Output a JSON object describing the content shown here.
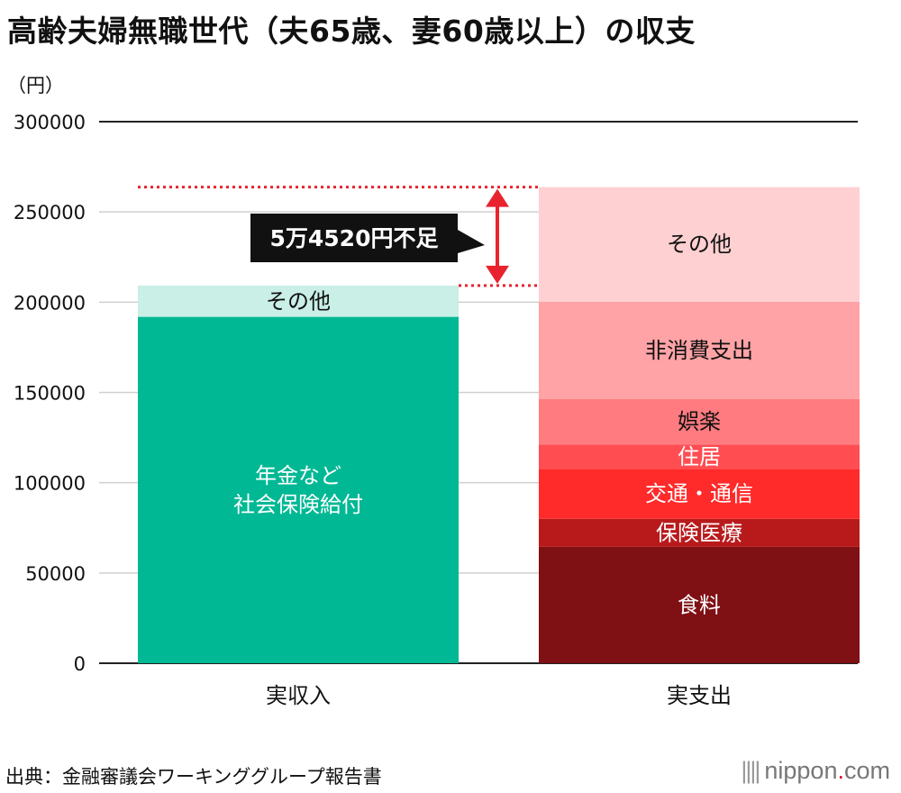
{
  "title": "高齢夫婦無職世代（夫65歳、妻60歳以上）の収支",
  "source": "出典：金融審議会ワーキンググループ報告書",
  "brand": {
    "name": "nippon",
    "dot": ".",
    "tld": "com",
    "bars": "||||"
  },
  "chart_data": {
    "type": "bar",
    "stacked": true,
    "unit_label": "（円）",
    "ylim": [
      0,
      300000
    ],
    "yticks": [
      "0",
      "50000",
      "100000",
      "150000",
      "200000",
      "250000",
      "300000"
    ],
    "grid": true,
    "categories": [
      "実収入",
      "実支出"
    ],
    "stacks": [
      {
        "category": "実収入",
        "segments": [
          {
            "label_lines": [
              "年金など",
              "社会保険給付"
            ],
            "value": 191880,
            "color": "#00b894",
            "text_color": "#ffffff"
          },
          {
            "label_lines": [
              "その他"
            ],
            "value": 17318,
            "color": "#c9efe6",
            "text_color": "#111111"
          }
        ]
      },
      {
        "category": "実支出",
        "segments": [
          {
            "label_lines": [
              "食料"
            ],
            "value": 64444,
            "color": "#7f1014",
            "text_color": "#ffffff"
          },
          {
            "label_lines": [
              "保険医療"
            ],
            "value": 15512,
            "color": "#b81a1c",
            "text_color": "#ffffff"
          },
          {
            "label_lines": [
              "交通・通信"
            ],
            "value": 27576,
            "color": "#ff2a2a",
            "text_color": "#ffffff"
          },
          {
            "label_lines": [
              "住居"
            ],
            "value": 13656,
            "color": "#ff4d52",
            "text_color": "#ffffff"
          },
          {
            "label_lines": [
              "娯楽"
            ],
            "value": 25077,
            "color": "#ff7b80",
            "text_color": "#111111"
          },
          {
            "label_lines": [
              "非消費支出"
            ],
            "value": 54000,
            "color": "#ffa3a6",
            "text_color": "#111111"
          },
          {
            "label_lines": [
              "その他"
            ],
            "value": 63453,
            "color": "#ffd0d2",
            "text_color": "#111111"
          }
        ]
      }
    ],
    "annotation": {
      "text": "5万4520円不足",
      "value": 54520,
      "color": "#e8232e"
    }
  }
}
